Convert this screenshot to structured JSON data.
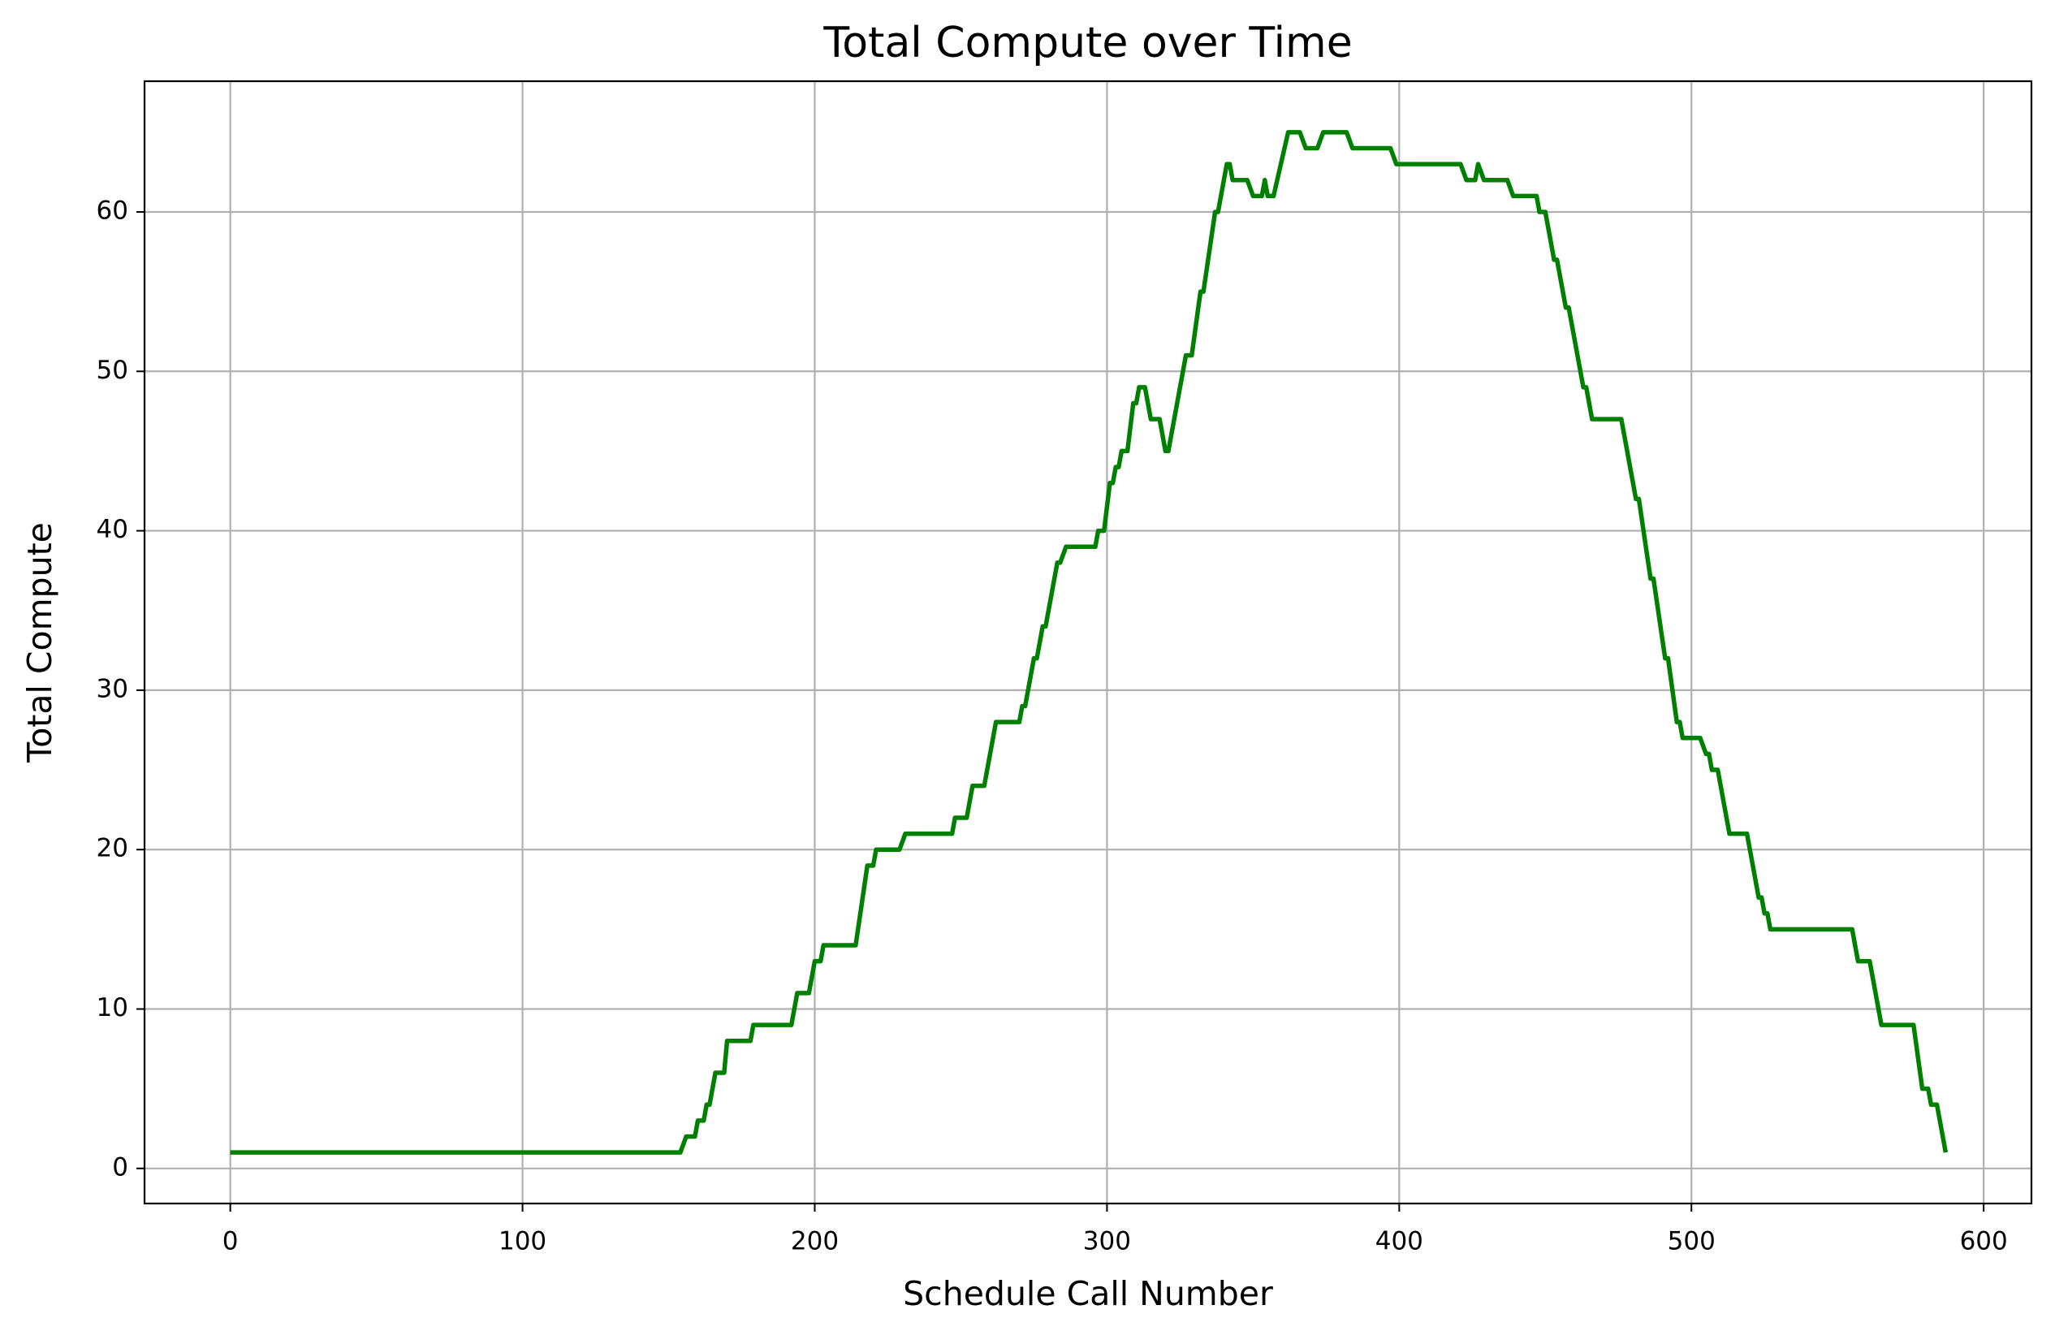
{
  "chart_data": {
    "type": "line",
    "title": "Total Compute over Time",
    "xlabel": "Schedule Call Number",
    "ylabel": "Total Compute",
    "x": [
      0,
      154,
      156,
      159,
      160,
      162,
      163,
      164,
      166,
      169,
      170,
      178,
      179,
      192,
      194,
      198,
      199,
      200,
      202,
      203,
      214,
      218,
      220,
      221,
      229,
      231,
      247,
      248,
      252,
      254,
      258,
      262,
      270,
      271,
      272,
      275,
      276,
      278,
      279,
      283,
      284,
      286,
      296,
      297,
      299,
      301,
      302,
      303,
      304,
      305,
      307,
      309,
      310,
      311,
      313,
      315,
      318,
      320,
      321,
      327,
      329,
      332,
      333,
      337,
      338,
      341,
      342,
      343,
      348,
      350,
      353,
      354,
      355,
      357,
      362,
      366,
      368,
      372,
      374,
      382,
      384,
      397,
      399,
      421,
      423,
      426,
      427,
      429,
      437,
      439,
      447,
      448,
      450,
      453,
      454,
      457,
      458,
      463,
      464,
      466,
      476,
      481,
      482,
      486,
      487,
      491,
      492,
      495,
      496,
      497,
      503,
      505,
      506,
      507,
      509,
      513,
      519,
      523,
      524,
      525,
      526,
      527,
      555,
      557,
      561,
      565,
      576,
      579,
      581,
      582,
      584,
      587
    ],
    "series": [
      {
        "name": "Total Compute",
        "color": "#008000",
        "values": [
          1,
          1,
          2,
          2,
          3,
          3,
          4,
          4,
          6,
          6,
          8,
          8,
          9,
          9,
          11,
          11,
          12,
          13,
          13,
          14,
          14,
          19,
          19,
          20,
          20,
          21,
          21,
          22,
          22,
          24,
          24,
          28,
          28,
          29,
          29,
          32,
          32,
          34,
          34,
          38,
          38,
          39,
          39,
          40,
          40,
          43,
          43,
          44,
          44,
          45,
          45,
          48,
          48,
          49,
          49,
          47,
          47,
          45,
          45,
          51,
          51,
          55,
          55,
          60,
          60,
          63,
          63,
          62,
          62,
          61,
          61,
          62,
          61,
          61,
          65,
          65,
          64,
          64,
          65,
          65,
          64,
          64,
          63,
          63,
          62,
          62,
          63,
          62,
          62,
          61,
          61,
          60,
          60,
          57,
          57,
          54,
          54,
          49,
          49,
          47,
          47,
          42,
          42,
          37,
          37,
          32,
          32,
          28,
          28,
          27,
          27,
          26,
          26,
          25,
          25,
          21,
          21,
          17,
          17,
          16,
          16,
          15,
          15,
          13,
          13,
          9,
          9,
          5,
          5,
          4,
          4,
          1
        ]
      }
    ],
    "xlim": [
      -29.35,
      616.35
    ],
    "ylim": [
      -2.2,
      68.2
    ],
    "xticks": [
      0,
      100,
      200,
      300,
      400,
      500,
      600
    ],
    "yticks": [
      0,
      10,
      20,
      30,
      40,
      50,
      60
    ],
    "grid": true
  }
}
